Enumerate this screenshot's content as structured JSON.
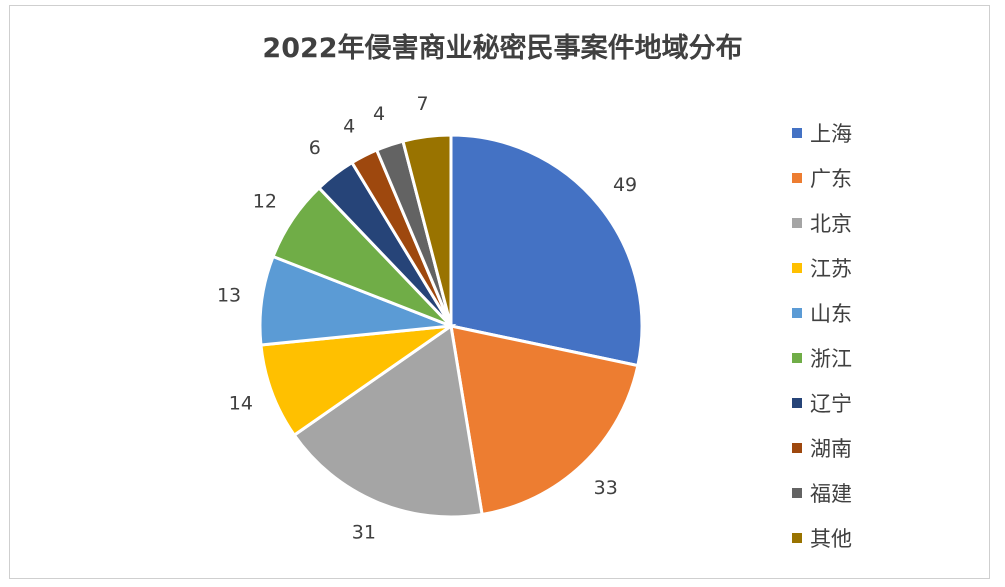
{
  "chart_data": {
    "type": "pie",
    "title": "2022年侵害商业秘密民事案件地域分布",
    "categories": [
      "上海",
      "广东",
      "北京",
      "江苏",
      "山东",
      "浙江",
      "辽宁",
      "湖南",
      "福建",
      "其他"
    ],
    "values": [
      49,
      33,
      31,
      14,
      13,
      12,
      6,
      4,
      4,
      7
    ],
    "colors": [
      "#4472C4",
      "#ED7D31",
      "#A5A5A5",
      "#FFC000",
      "#5B9BD5",
      "#70AD47",
      "#264478",
      "#9E480E",
      "#636363",
      "#997300"
    ],
    "legend_position": "right"
  }
}
